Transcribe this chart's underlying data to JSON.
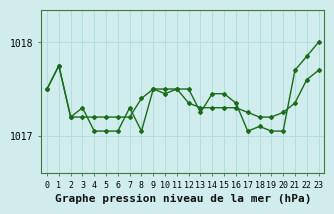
{
  "series1": {
    "comment": "Upper/smoother line - starts at 1017.5, relatively flat with slight rise",
    "x": [
      0,
      1,
      2,
      3,
      4,
      5,
      6,
      7,
      8,
      9,
      10,
      11,
      12,
      13,
      14,
      15,
      16,
      17,
      18,
      19,
      20,
      21,
      22,
      23
    ],
    "y": [
      1017.5,
      1017.75,
      1017.2,
      1017.2,
      1017.2,
      1017.2,
      1017.2,
      1017.2,
      1017.4,
      1017.5,
      1017.5,
      1017.5,
      1017.35,
      1017.3,
      1017.3,
      1017.3,
      1017.3,
      1017.25,
      1017.2,
      1017.2,
      1017.25,
      1017.35,
      1017.6,
      1017.7
    ]
  },
  "series2": {
    "comment": "Lower volatile line - dips to 1017.0 range, spikes up at end to 1018",
    "x": [
      0,
      1,
      2,
      3,
      4,
      5,
      6,
      7,
      8,
      9,
      10,
      11,
      12,
      13,
      14,
      15,
      16,
      17,
      18,
      19,
      20,
      21,
      22,
      23
    ],
    "y": [
      1017.5,
      1017.75,
      1017.2,
      1017.3,
      1017.05,
      1017.05,
      1017.05,
      1017.3,
      1017.05,
      1017.5,
      1017.45,
      1017.5,
      1017.5,
      1017.25,
      1017.45,
      1017.45,
      1017.35,
      1017.05,
      1017.1,
      1017.05,
      1017.05,
      1017.7,
      1017.85,
      1018.0
    ]
  },
  "yticks": [
    1017,
    1018
  ],
  "xticks": [
    0,
    1,
    2,
    3,
    4,
    5,
    6,
    7,
    8,
    9,
    10,
    11,
    12,
    13,
    14,
    15,
    16,
    17,
    18,
    19,
    20,
    21,
    22,
    23
  ],
  "ylim": [
    1016.6,
    1018.35
  ],
  "xlim": [
    -0.5,
    23.5
  ],
  "line_color": "#1a6b1a",
  "bg_color": "#d0ecec",
  "grid_color": "#a8d8d8",
  "xlabel": "Graphe pression niveau de la mer (hPa)",
  "xlabel_fontsize": 8,
  "tick_fontsize": 6,
  "marker": "D",
  "marker_size": 2.0,
  "line_width": 1.0
}
